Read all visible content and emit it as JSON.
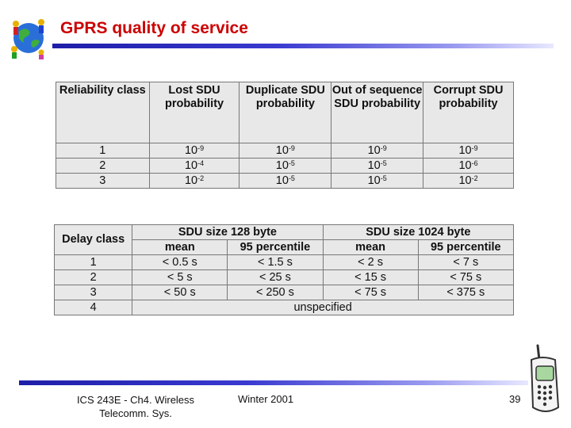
{
  "slide": {
    "title": "GPRS quality of service",
    "footer": {
      "course": "ICS 243E - Ch4. Wireless Telecomm. Sys.",
      "term": "Winter 2001",
      "page": "39"
    }
  },
  "reliability_table": {
    "headers": [
      "Reliability class",
      "Lost SDU probability",
      "Duplicate SDU probability",
      "Out of sequence SDU probability",
      "Corrupt SDU probability"
    ],
    "rows": [
      {
        "class": "1",
        "base": "10",
        "exps": [
          "-9",
          "-9",
          "-9",
          "-9"
        ]
      },
      {
        "class": "2",
        "base": "10",
        "exps": [
          "-4",
          "-5",
          "-5",
          "-6"
        ]
      },
      {
        "class": "3",
        "base": "10",
        "exps": [
          "-2",
          "-5",
          "-5",
          "-2"
        ]
      }
    ]
  },
  "delay_table": {
    "header_delay_class": "Delay class",
    "group_128": "SDU size 128 byte",
    "group_1024": "SDU size 1024 byte",
    "sub_mean": "mean",
    "sub_p95": "95 percentile",
    "rows": [
      {
        "class": "1",
        "cells": [
          "< 0.5 s",
          "< 1.5 s",
          "< 2 s",
          "< 7 s"
        ]
      },
      {
        "class": "2",
        "cells": [
          "< 5 s",
          "< 25 s",
          "< 15 s",
          "< 75 s"
        ]
      },
      {
        "class": "3",
        "cells": [
          "< 50 s",
          "< 250 s",
          "< 75 s",
          "< 375 s"
        ]
      }
    ],
    "last_row": {
      "class": "4",
      "text": "unspecified"
    }
  },
  "colors": {
    "title": "#cc0000",
    "bar": "#2a2ab8",
    "table_bg": "#e8e8e8"
  },
  "icons": [
    "globe-logo-icon",
    "mobile-phone-icon"
  ]
}
